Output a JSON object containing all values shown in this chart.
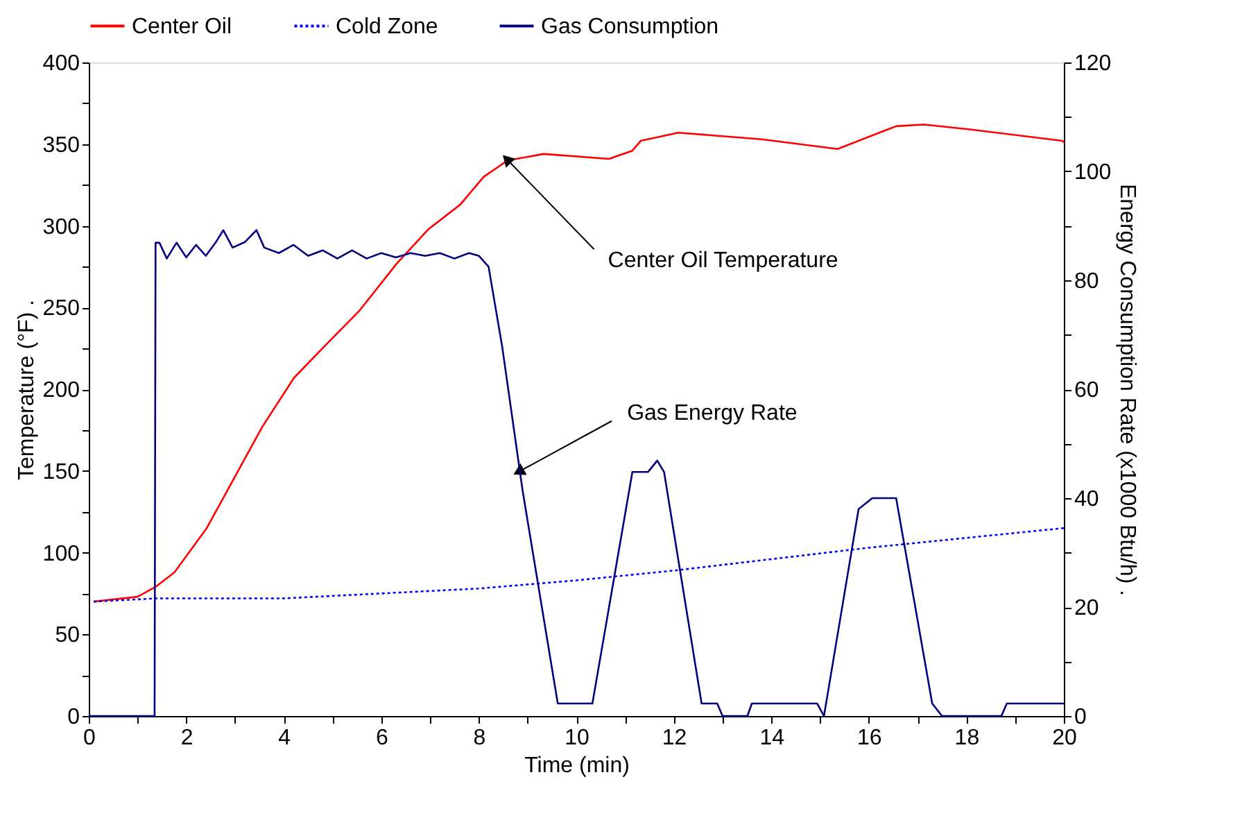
{
  "chart_data": {
    "type": "line",
    "xlabel": "Time (min)",
    "ylabel": "Temperature (°F)   .",
    "y2label": "Energy Consumption Rate (x1000 Btu/h)   .",
    "xlim": [
      0,
      20
    ],
    "xticks": [
      0,
      {
        "value": 1,
        "label": null
      },
      2,
      {
        "value": 3,
        "label": null
      },
      4,
      {
        "value": 5,
        "label": null
      },
      6,
      {
        "value": 7,
        "label": null
      },
      8,
      {
        "value": 9,
        "label": null
      },
      10,
      {
        "value": 11,
        "label": null
      },
      12,
      {
        "value": 13,
        "label": null
      },
      14,
      {
        "value": 15,
        "label": null
      },
      16,
      {
        "value": 17,
        "label": null
      },
      18,
      {
        "value": 19,
        "label": null
      },
      20
    ],
    "ylim": [
      0,
      400
    ],
    "yticks": [
      0,
      {
        "value": 25,
        "label": null
      },
      50,
      {
        "value": 75,
        "label": null
      },
      100,
      {
        "value": 125,
        "label": null
      },
      150,
      {
        "value": 175,
        "label": null
      },
      200,
      {
        "value": 225,
        "label": null
      },
      250,
      {
        "value": 275,
        "label": null
      },
      300,
      {
        "value": 325,
        "label": null
      },
      350,
      {
        "value": 375,
        "label": null
      },
      400
    ],
    "y2lim": [
      0,
      120
    ],
    "y2ticks": [
      0,
      {
        "value": 10,
        "label": null
      },
      20,
      {
        "value": 30,
        "label": null
      },
      40,
      {
        "value": 50,
        "label": null
      },
      60,
      {
        "value": 70,
        "label": null
      },
      80,
      {
        "value": 90,
        "label": null
      },
      100,
      {
        "value": 110,
        "label": null
      },
      120
    ],
    "legend": "top",
    "grid": false,
    "series": [
      {
        "name": "Center Oil",
        "color": "#ff0000",
        "line_style": "solid",
        "x": [
          0.1,
          1.0,
          1.37,
          1.76,
          2.42,
          2.99,
          3.56,
          4.21,
          4.89,
          5.55,
          6.32,
          6.97,
          7.62,
          8.1,
          8.59,
          9.33,
          10.67,
          11.15,
          11.32,
          12.09,
          13.8,
          15.36,
          16.56,
          17.13,
          18.07,
          19.97,
          20
        ],
        "values": [
          70,
          73,
          79,
          88,
          115,
          146,
          177,
          207,
          228,
          248,
          277,
          298,
          313,
          330,
          340,
          344,
          341,
          346,
          352,
          357,
          353,
          347,
          361,
          362,
          359,
          352,
          351
        ]
      },
      {
        "name": "Cold Zone",
        "color": "#0000ff",
        "line_style": "dotted",
        "x": [
          0.1,
          1.4,
          4,
          6,
          8,
          10,
          12,
          14,
          16,
          18,
          20
        ],
        "values": [
          70,
          72,
          72,
          75,
          78,
          83,
          89,
          96,
          103,
          109,
          115
        ]
      },
      {
        "name": "Gas Consumption",
        "color": "#000080",
        "line_style": "solid",
        "axis": "y2",
        "x": [
          0,
          1.35,
          1.37,
          1.45,
          1.6,
          1.8,
          2.0,
          2.2,
          2.4,
          2.6,
          2.76,
          2.95,
          3.2,
          3.44,
          3.6,
          3.9,
          4.2,
          4.5,
          4.8,
          5.1,
          5.4,
          5.7,
          6.0,
          6.3,
          6.6,
          6.9,
          7.2,
          7.5,
          7.8,
          8.0,
          8.2,
          8.48,
          8.9,
          9.62,
          10.33,
          11.15,
          11.47,
          11.66,
          11.8,
          12.57,
          12.89,
          13.0,
          13.51,
          13.6,
          14.94,
          15.08,
          15.79,
          16.07,
          16.56,
          17.3,
          17.5,
          18.72,
          18.83,
          20
        ],
        "values": [
          0,
          0,
          86.9,
          86.9,
          84.0,
          86.9,
          84.2,
          86.5,
          84.5,
          86.9,
          89.2,
          86.0,
          87.0,
          89.2,
          86.0,
          85.0,
          86.5,
          84.5,
          85.5,
          84.0,
          85.5,
          84.0,
          85.0,
          84.2,
          85.0,
          84.5,
          85.0,
          84.0,
          85.0,
          84.5,
          82.5,
          67.8,
          41.3,
          2.3,
          2.3,
          44.8,
          44.8,
          46.9,
          44.8,
          2.3,
          2.3,
          0,
          0,
          2.3,
          2.3,
          0,
          38.0,
          40.0,
          40.0,
          2.3,
          0,
          0,
          2.3,
          2.3
        ]
      }
    ],
    "annotations": [
      {
        "text": "Center Oil Temperature",
        "x": 8.6,
        "y": 340
      },
      {
        "text": "Gas Energy Rate",
        "x": 8.85,
        "y": 150
      }
    ]
  }
}
